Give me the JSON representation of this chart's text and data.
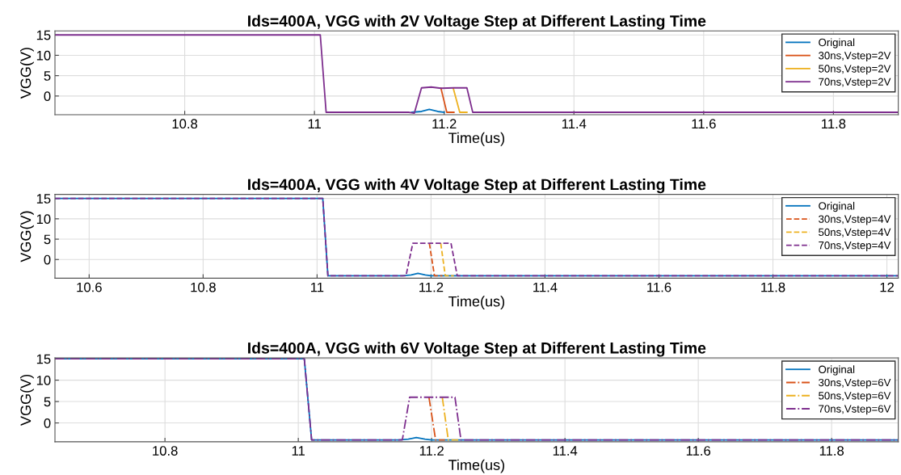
{
  "chart_data": [
    {
      "type": "line",
      "title": "Ids=400A, VGG with 2V Voltage Step at Different Lasting Time",
      "xlabel": "Time(us)",
      "ylabel": "VGG(V)",
      "xlim": [
        10.6,
        11.9
      ],
      "xticks": [
        10.8,
        11,
        11.2,
        11.4,
        11.6,
        11.8
      ],
      "ylim": [
        -4.6,
        16
      ],
      "yticks": [
        0,
        5,
        10,
        15
      ],
      "grid": true,
      "legend": "top right",
      "marker": "none",
      "series": [
        {
          "name": "Original",
          "color": "#0072bd",
          "line_style": "solid",
          "x": [
            11.15,
            11.165,
            11.177,
            11.19,
            11.2
          ],
          "values": [
            -4,
            -3.8,
            -3.3,
            -3.8,
            -4
          ]
        },
        {
          "name": "30ns,Vstep=2V",
          "color": "#d95319",
          "line_style": "solid",
          "x": [
            11.195,
            11.204,
            11.215
          ],
          "values": [
            1.9,
            -4,
            -4
          ]
        },
        {
          "name": "50ns,Vstep=2V",
          "color": "#edb120",
          "line_style": "solid",
          "x": [
            11.214,
            11.224,
            11.235
          ],
          "values": [
            1.9,
            -4,
            -4
          ]
        },
        {
          "name": "70ns,Vstep=2V",
          "color": "#7e2f8e",
          "line_style": "solid",
          "x": [
            10.6,
            11.009,
            11.018,
            11.145,
            11.154,
            11.165,
            11.18,
            11.195,
            11.215,
            11.235,
            11.244,
            11.9
          ],
          "values": [
            15,
            15,
            -4,
            -4,
            -4.2,
            2,
            2.2,
            1.9,
            2,
            2,
            -4,
            -4
          ]
        }
      ]
    },
    {
      "type": "line",
      "title": "Ids=400A, VGG with 4V Voltage Step at Different Lasting Time",
      "xlabel": "Time(us)",
      "ylabel": "VGG(V)",
      "xlim": [
        10.54,
        12.02
      ],
      "xticks": [
        10.6,
        10.8,
        11,
        11.2,
        11.4,
        11.6,
        11.8,
        12
      ],
      "ylim": [
        -4.6,
        16
      ],
      "yticks": [
        0,
        5,
        10,
        15
      ],
      "grid": true,
      "legend": "top right",
      "marker": "none",
      "series": [
        {
          "name": "Original",
          "color": "#0072bd",
          "line_style": "solid",
          "x": [
            10.54,
            11.01,
            11.019,
            11.15,
            11.165,
            11.177,
            11.19,
            11.2,
            11.21,
            12.02
          ],
          "values": [
            15,
            15,
            -4,
            -4,
            -3.8,
            -3.4,
            -3.8,
            -4,
            -4,
            -4
          ]
        },
        {
          "name": "30ns,Vstep=4V",
          "color": "#d95319",
          "line_style": "dashed",
          "x": [
            11.197,
            11.206,
            11.22
          ],
          "values": [
            4,
            -4,
            -4
          ]
        },
        {
          "name": "50ns,Vstep=4V",
          "color": "#edb120",
          "line_style": "dashed",
          "x": [
            11.217,
            11.225,
            11.24
          ],
          "values": [
            4,
            -4,
            -4
          ]
        },
        {
          "name": "70ns,Vstep=4V",
          "color": "#7e2f8e",
          "line_style": "dashed",
          "x": [
            10.54,
            11.01,
            11.019,
            11.156,
            11.168,
            11.235,
            11.246,
            12.02
          ],
          "values": [
            15,
            15,
            -4,
            -4,
            4,
            4,
            -4,
            -4
          ]
        }
      ]
    },
    {
      "type": "line",
      "title": "Ids=400A, VGG with 6V Voltage Step at Different Lasting Time",
      "xlabel": "Time(us)",
      "ylabel": "VGG(V)",
      "xlim": [
        10.635,
        11.9
      ],
      "xticks": [
        10.8,
        11,
        11.2,
        11.4,
        11.6,
        11.8
      ],
      "ylim": [
        -4.4,
        15.2
      ],
      "yticks": [
        0,
        5,
        10,
        15
      ],
      "grid": true,
      "legend": "top right",
      "marker": "none",
      "series": [
        {
          "name": "Original",
          "color": "#0072bd",
          "line_style": "solid",
          "x": [
            10.635,
            11.009,
            11.02,
            11.15,
            11.165,
            11.177,
            11.19,
            11.2,
            11.21,
            11.9
          ],
          "values": [
            15,
            15,
            -4,
            -4,
            -3.8,
            -3.4,
            -3.8,
            -4,
            -4,
            -4
          ]
        },
        {
          "name": "30ns,Vstep=6V",
          "color": "#d95319",
          "line_style": "dashdot",
          "x": [
            11.196,
            11.206,
            11.22
          ],
          "values": [
            6,
            -4,
            -4
          ]
        },
        {
          "name": "50ns,Vstep=6V",
          "color": "#edb120",
          "line_style": "dashdot",
          "x": [
            11.216,
            11.225,
            11.24
          ],
          "values": [
            6,
            -4,
            -4
          ]
        },
        {
          "name": "70ns,Vstep=6V",
          "color": "#7e2f8e",
          "line_style": "dashdot",
          "x": [
            10.635,
            11.009,
            11.02,
            11.156,
            11.167,
            11.235,
            11.244,
            11.9
          ],
          "values": [
            15,
            15,
            -4,
            -4,
            6,
            6,
            -4,
            -4
          ]
        }
      ]
    }
  ]
}
